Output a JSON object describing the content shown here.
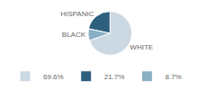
{
  "chart_data": {
    "type": "pie",
    "categories": [
      "WHITE",
      "HISPANIC",
      "BLACK"
    ],
    "values": [
      69.6,
      21.7,
      8.7
    ],
    "value_labels": [
      "69.6%",
      "21.7%",
      "8.7%"
    ],
    "colors": [
      "#ccd9e3",
      "#2d5f7e",
      "#8aafc4"
    ],
    "legend": "bottom"
  }
}
